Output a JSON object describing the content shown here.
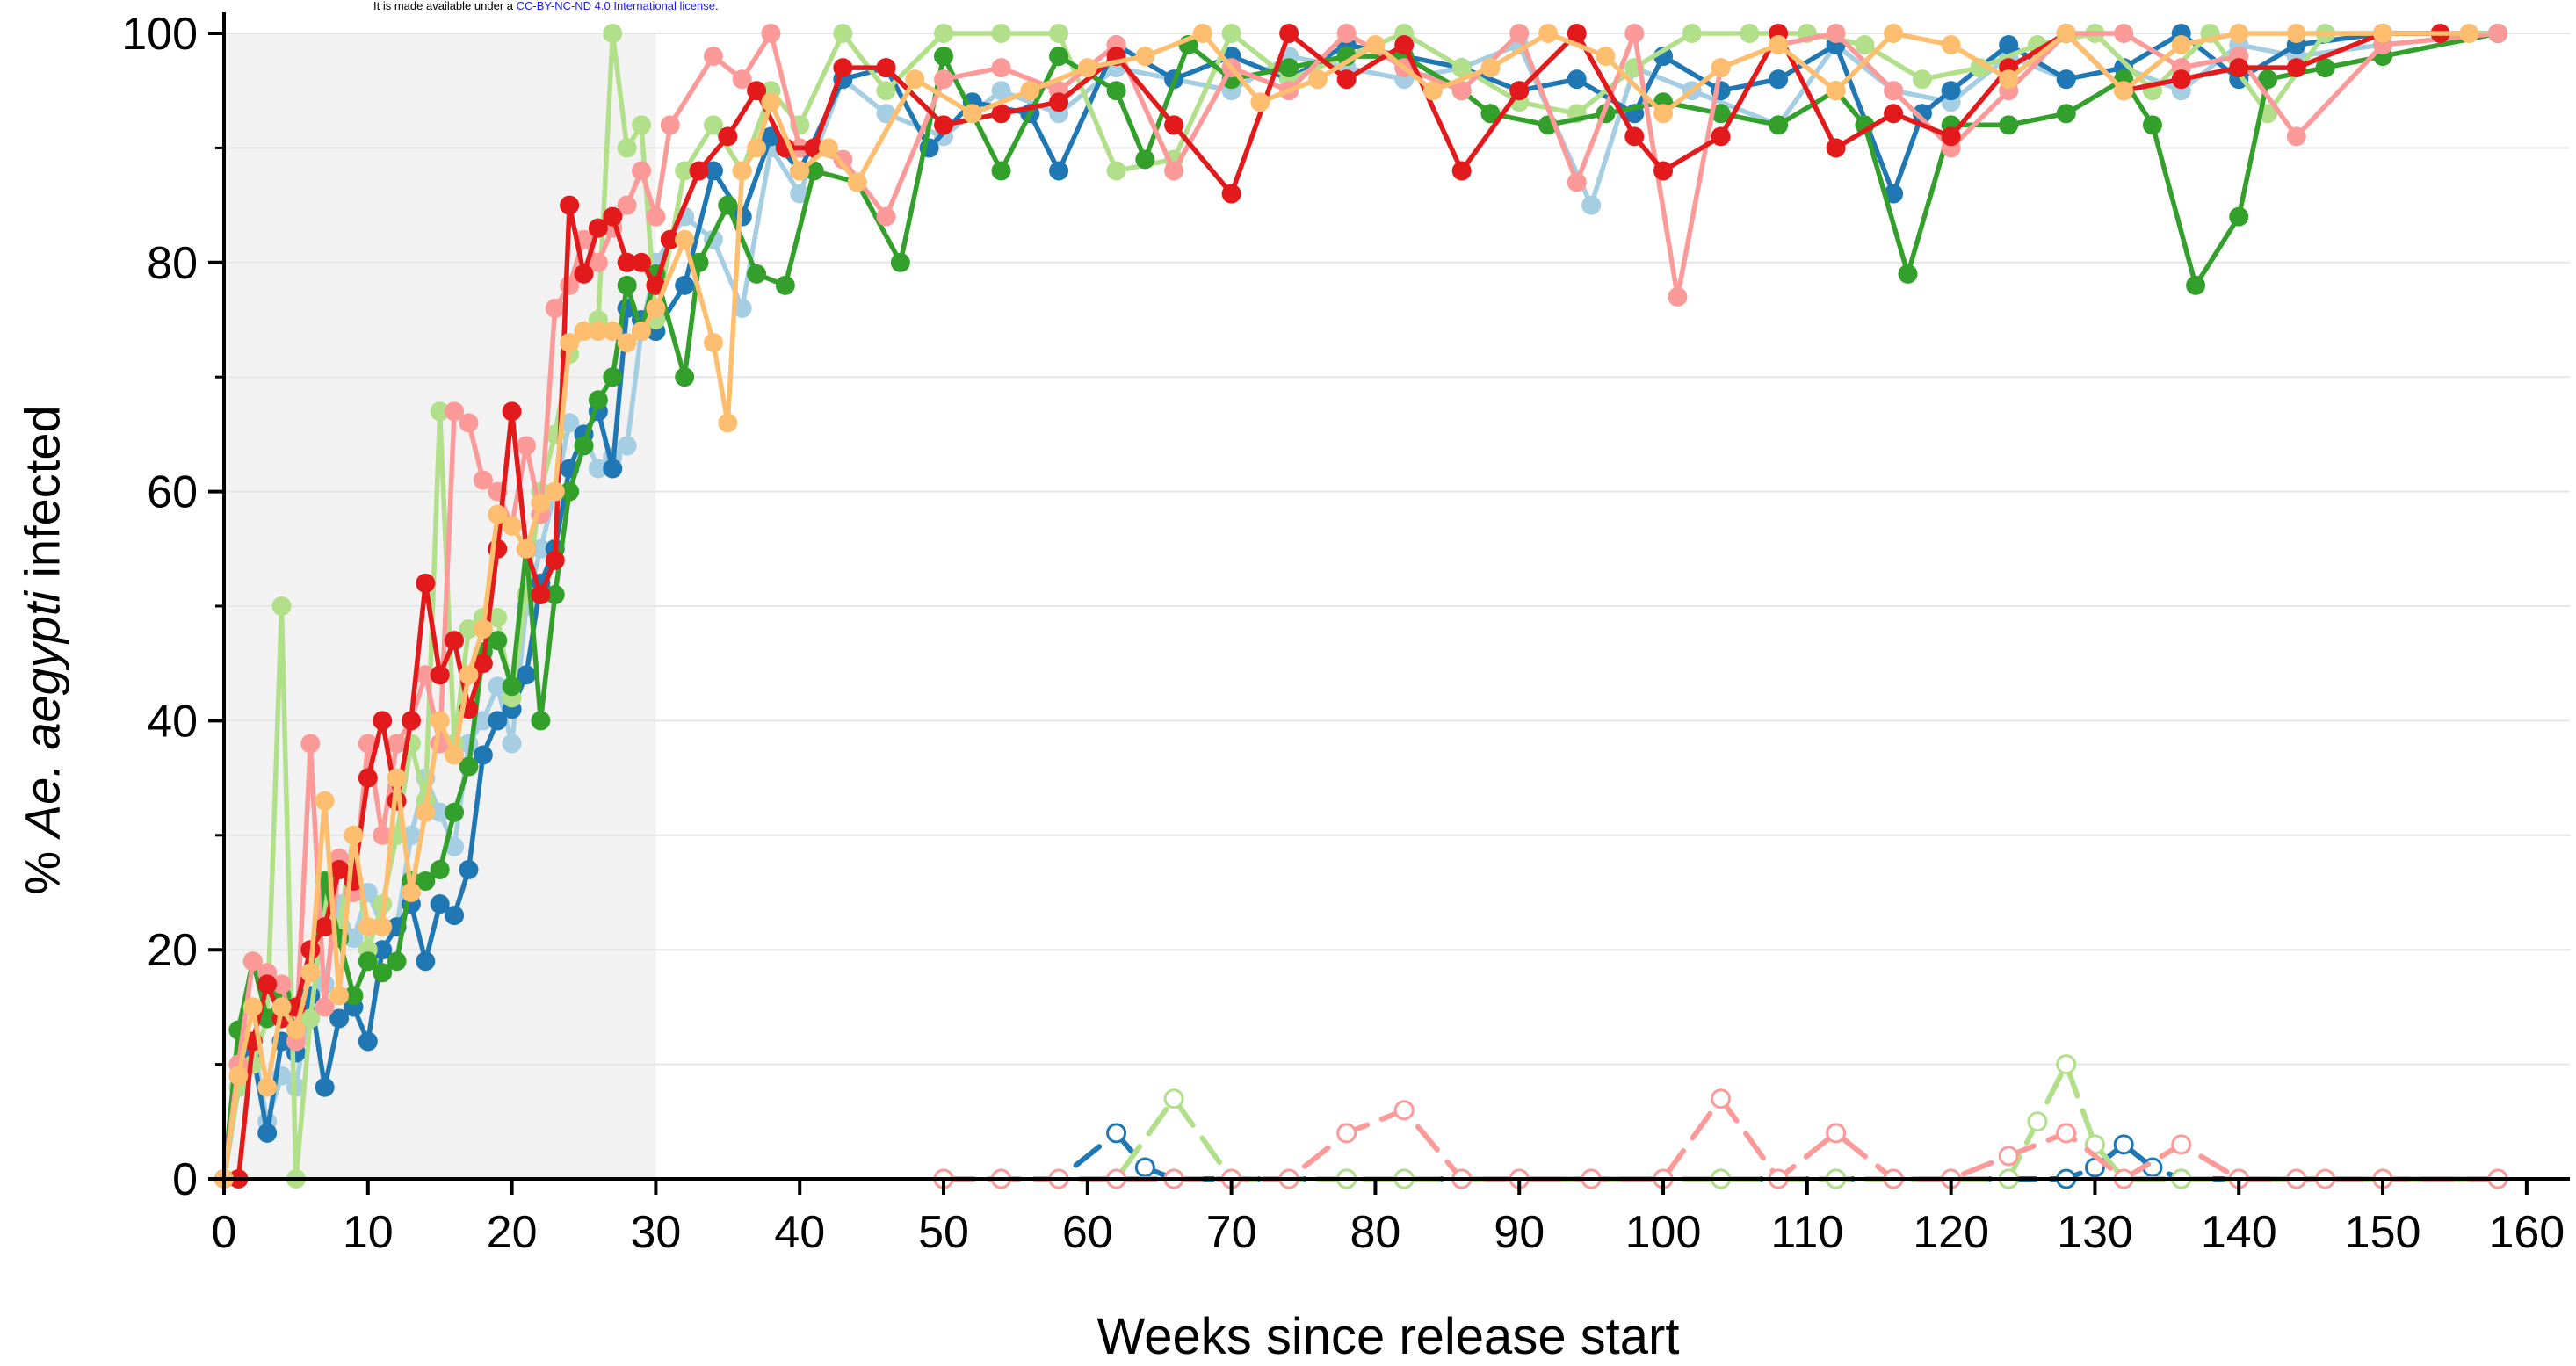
{
  "header": {
    "license_prefix": "It is made available under a",
    "license_link": "CC-BY-NC-ND 4.0 International license",
    "license_suffix": "."
  },
  "chart_data": {
    "type": "line",
    "xlabel": "Weeks since release start",
    "ylabel_prefix": "%",
    "ylabel_italic": "Ae. aegypti",
    "ylabel_suffix": "infected",
    "xlim": [
      0,
      163
    ],
    "ylim": [
      0,
      100
    ],
    "xticks": [
      0,
      10,
      20,
      30,
      40,
      50,
      60,
      70,
      80,
      90,
      100,
      110,
      120,
      130,
      140,
      150,
      160
    ],
    "yticks": [
      0,
      20,
      40,
      60,
      80,
      100
    ],
    "shaded_region": [
      0,
      30
    ],
    "grid": "horizontal",
    "colors": {
      "dark_blue": "#1f78b4",
      "light_blue": "#a6cee3",
      "dark_green": "#33a02c",
      "light_green": "#b2df8a",
      "red": "#e31a1c",
      "pink": "#fb9a99",
      "orange": "#fdbf6f",
      "shade": "#f2f2f2"
    },
    "series": [
      {
        "color": "#a6cee3",
        "style": "solid",
        "x": [
          0,
          1,
          2,
          3,
          4,
          5,
          6,
          7,
          8,
          9,
          10,
          11,
          12,
          13,
          14,
          15,
          16,
          17,
          18,
          19,
          20,
          21,
          22,
          23,
          24,
          25,
          26,
          27,
          28,
          29,
          30,
          32,
          34,
          36,
          38,
          40,
          43,
          46,
          50,
          54,
          58,
          62,
          66,
          70,
          74,
          78,
          82,
          86,
          90,
          95,
          98,
          102,
          108,
          112,
          116,
          120,
          124,
          128,
          132,
          136,
          140,
          144,
          150,
          158
        ],
        "y": [
          0,
          10,
          12,
          5,
          9,
          8,
          16,
          17,
          24,
          21,
          25,
          22,
          22,
          30,
          35,
          32,
          29,
          38,
          40,
          43,
          38,
          50,
          55,
          60,
          66,
          65,
          62,
          63,
          64,
          74,
          80,
          84,
          82,
          76,
          90,
          86,
          96,
          93,
          91,
          95,
          93,
          97,
          96,
          95,
          98,
          97,
          96,
          97,
          99,
          85,
          97,
          95,
          92,
          99,
          95,
          94,
          98,
          96,
          97,
          95,
          99,
          98,
          99,
          100
        ]
      },
      {
        "color": "#1f78b4",
        "style": "solid",
        "x": [
          0,
          1,
          2,
          3,
          4,
          5,
          6,
          7,
          8,
          9,
          10,
          11,
          12,
          13,
          14,
          15,
          16,
          17,
          18,
          19,
          20,
          21,
          22,
          23,
          24,
          25,
          26,
          27,
          28,
          29,
          30,
          32,
          34,
          36,
          38,
          40,
          43,
          46,
          49,
          52,
          56,
          58,
          62,
          66,
          70,
          74,
          78,
          82,
          86,
          90,
          94,
          98,
          100,
          104,
          108,
          112,
          116,
          118,
          120,
          124,
          128,
          132,
          136,
          140,
          144,
          150,
          158
        ],
        "y": [
          0,
          8,
          11,
          4,
          12,
          11,
          16,
          8,
          14,
          15,
          12,
          20,
          22,
          24,
          19,
          24,
          23,
          27,
          37,
          40,
          41,
          44,
          52,
          55,
          62,
          65,
          67,
          62,
          76,
          75,
          74,
          78,
          88,
          84,
          91,
          88,
          96,
          97,
          90,
          94,
          93,
          88,
          99,
          96,
          98,
          96,
          99,
          98,
          97,
          95,
          96,
          93,
          98,
          95,
          96,
          99,
          86,
          93,
          95,
          99,
          96,
          97,
          100,
          96,
          99,
          100,
          100
        ]
      },
      {
        "color": "#b2df8a",
        "style": "solid",
        "x": [
          0,
          1,
          2,
          3,
          4,
          5,
          6,
          7,
          8,
          9,
          10,
          11,
          12,
          13,
          14,
          15,
          16,
          17,
          18,
          19,
          20,
          21,
          22,
          23,
          24,
          25,
          26,
          27,
          28,
          29,
          30,
          32,
          34,
          36,
          38,
          40,
          43,
          46,
          50,
          54,
          58,
          62,
          66,
          70,
          74,
          78,
          82,
          86,
          90,
          94,
          98,
          102,
          106,
          110,
          114,
          118,
          122,
          126,
          130,
          134,
          138,
          142,
          146,
          150,
          158
        ],
        "y": [
          0,
          8,
          10,
          14,
          50,
          0,
          14,
          24,
          22,
          30,
          20,
          24,
          30,
          38,
          33,
          67,
          38,
          48,
          49,
          49,
          42,
          51,
          60,
          65,
          72,
          74,
          75,
          100,
          90,
          92,
          75,
          88,
          92,
          88,
          95,
          92,
          100,
          95,
          100,
          100,
          100,
          88,
          89,
          100,
          96,
          98,
          100,
          97,
          94,
          93,
          97,
          100,
          100,
          100,
          99,
          96,
          97,
          99,
          100,
          95,
          100,
          93,
          100,
          100,
          100
        ]
      },
      {
        "color": "#33a02c",
        "style": "solid",
        "x": [
          0,
          1,
          2,
          3,
          4,
          5,
          6,
          7,
          8,
          9,
          10,
          11,
          12,
          13,
          14,
          15,
          16,
          17,
          18,
          19,
          20,
          21,
          22,
          23,
          24,
          25,
          26,
          27,
          28,
          29,
          30,
          32,
          33,
          35,
          37,
          39,
          41,
          44,
          47,
          50,
          54,
          58,
          62,
          64,
          67,
          70,
          74,
          78,
          82,
          86,
          88,
          92,
          96,
          100,
          104,
          108,
          112,
          114,
          117,
          120,
          124,
          128,
          132,
          134,
          137,
          140,
          142,
          146,
          150,
          158
        ],
        "y": [
          0,
          13,
          19,
          14,
          16,
          13,
          18,
          26,
          21,
          16,
          19,
          18,
          19,
          26,
          26,
          27,
          32,
          36,
          46,
          47,
          43,
          55,
          40,
          51,
          60,
          64,
          68,
          70,
          78,
          74,
          79,
          70,
          80,
          85,
          79,
          78,
          88,
          87,
          80,
          98,
          88,
          98,
          95,
          89,
          99,
          96,
          97,
          98,
          98,
          95,
          93,
          92,
          93,
          94,
          93,
          92,
          95,
          92,
          79,
          92,
          92,
          93,
          96,
          92,
          78,
          84,
          96,
          97,
          98,
          100
        ]
      },
      {
        "color": "#fb9a99",
        "style": "solid",
        "x": [
          0,
          1,
          2,
          3,
          4,
          5,
          6,
          7,
          8,
          9,
          10,
          11,
          12,
          13,
          14,
          15,
          16,
          17,
          18,
          19,
          20,
          21,
          22,
          23,
          24,
          25,
          26,
          27,
          28,
          29,
          30,
          31,
          34,
          36,
          38,
          40,
          43,
          46,
          50,
          54,
          58,
          62,
          66,
          70,
          74,
          78,
          82,
          86,
          90,
          94,
          98,
          101,
          104,
          108,
          112,
          116,
          120,
          124,
          128,
          132,
          136,
          140,
          144,
          150,
          158
        ],
        "y": [
          0,
          10,
          19,
          18,
          17,
          12,
          38,
          15,
          28,
          25,
          38,
          30,
          38,
          40,
          44,
          38,
          67,
          66,
          61,
          60,
          57,
          64,
          58,
          76,
          78,
          82,
          80,
          83,
          85,
          88,
          84,
          92,
          98,
          96,
          100,
          90,
          89,
          84,
          96,
          97,
          95,
          99,
          88,
          97,
          95,
          100,
          97,
          95,
          100,
          87,
          100,
          77,
          97,
          99,
          100,
          95,
          90,
          95,
          100,
          100,
          97,
          98,
          91,
          99,
          100
        ]
      },
      {
        "color": "#e31a1c",
        "style": "solid",
        "x": [
          0,
          1,
          2,
          3,
          4,
          5,
          6,
          7,
          8,
          9,
          10,
          11,
          12,
          13,
          14,
          15,
          16,
          17,
          18,
          19,
          20,
          21,
          22,
          23,
          24,
          25,
          26,
          27,
          28,
          29,
          30,
          31,
          33,
          35,
          37,
          39,
          41,
          43,
          46,
          50,
          54,
          58,
          62,
          66,
          70,
          74,
          78,
          82,
          86,
          90,
          94,
          98,
          100,
          104,
          108,
          112,
          116,
          120,
          124,
          128,
          132,
          136,
          140,
          144,
          150,
          154
        ],
        "y": [
          0,
          0,
          12,
          17,
          14,
          15,
          20,
          22,
          27,
          26,
          35,
          40,
          33,
          40,
          52,
          44,
          47,
          41,
          45,
          55,
          67,
          55,
          51,
          54,
          85,
          79,
          83,
          84,
          80,
          80,
          78,
          82,
          88,
          91,
          95,
          90,
          90,
          97,
          97,
          92,
          93,
          94,
          98,
          92,
          86,
          100,
          96,
          99,
          88,
          95,
          100,
          91,
          88,
          91,
          100,
          90,
          93,
          91,
          97,
          100,
          95,
          96,
          97,
          97,
          100,
          100
        ]
      },
      {
        "color": "#fdbf6f",
        "style": "solid",
        "x": [
          0,
          1,
          2,
          3,
          4,
          5,
          6,
          7,
          8,
          9,
          10,
          11,
          12,
          13,
          14,
          15,
          16,
          17,
          18,
          19,
          20,
          21,
          22,
          23,
          24,
          25,
          26,
          27,
          28,
          29,
          30,
          32,
          34,
          35,
          36,
          37,
          38,
          40,
          42,
          44,
          48,
          52,
          56,
          60,
          64,
          68,
          72,
          76,
          80,
          84,
          88,
          92,
          96,
          100,
          104,
          108,
          112,
          116,
          120,
          124,
          128,
          132,
          136,
          140,
          144,
          150,
          156
        ],
        "y": [
          0,
          9,
          15,
          8,
          15,
          13,
          18,
          33,
          16,
          30,
          22,
          22,
          35,
          25,
          32,
          40,
          37,
          44,
          48,
          58,
          57,
          55,
          59,
          60,
          73,
          74,
          74,
          74,
          73,
          74,
          76,
          82,
          73,
          66,
          88,
          90,
          94,
          88,
          90,
          87,
          96,
          93,
          95,
          97,
          98,
          100,
          94,
          96,
          99,
          95,
          97,
          100,
          98,
          93,
          97,
          99,
          95,
          100,
          99,
          96,
          100,
          95,
          99,
          100,
          100,
          100,
          100
        ]
      },
      {
        "color": "#1f78b4",
        "style": "dashed",
        "marker": "open",
        "x": [
          50,
          54,
          58,
          62,
          64,
          66,
          70,
          74,
          78,
          82,
          86,
          90,
          95,
          100,
          104,
          108,
          112,
          116,
          120,
          124,
          128,
          130,
          132,
          134,
          136,
          140,
          144,
          150,
          158
        ],
        "y": [
          0,
          0,
          0,
          4,
          1,
          0,
          0,
          0,
          0,
          0,
          0,
          0,
          0,
          0,
          0,
          0,
          0,
          0,
          0,
          0,
          0,
          1,
          3,
          1,
          0,
          0,
          0,
          0,
          0
        ]
      },
      {
        "color": "#b2df8a",
        "style": "dashed",
        "marker": "open",
        "x": [
          50,
          54,
          58,
          62,
          66,
          70,
          74,
          78,
          82,
          86,
          90,
          95,
          100,
          104,
          108,
          112,
          116,
          120,
          124,
          126,
          128,
          130,
          132,
          136,
          140,
          144,
          150,
          158
        ],
        "y": [
          0,
          0,
          0,
          0,
          7,
          0,
          0,
          0,
          0,
          0,
          0,
          0,
          0,
          0,
          0,
          0,
          0,
          0,
          0,
          5,
          10,
          3,
          0,
          0,
          0,
          0,
          0,
          0
        ]
      },
      {
        "color": "#fb9a99",
        "style": "dashed",
        "marker": "open",
        "x": [
          50,
          54,
          58,
          62,
          66,
          70,
          74,
          78,
          82,
          86,
          90,
          95,
          100,
          104,
          108,
          112,
          116,
          120,
          124,
          128,
          132,
          136,
          140,
          144,
          146,
          150,
          158
        ],
        "y": [
          0,
          0,
          0,
          0,
          0,
          0,
          0,
          4,
          6,
          0,
          0,
          0,
          0,
          7,
          0,
          4,
          0,
          0,
          2,
          4,
          0,
          3,
          0,
          0,
          0,
          0,
          0
        ]
      }
    ]
  }
}
